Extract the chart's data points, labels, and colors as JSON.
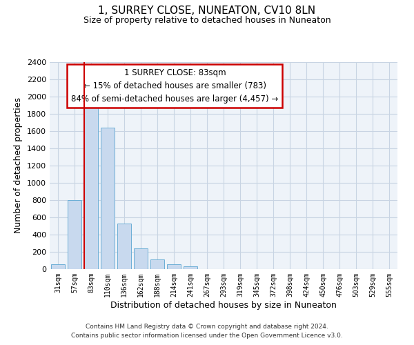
{
  "title": "1, SURREY CLOSE, NUNEATON, CV10 8LN",
  "subtitle": "Size of property relative to detached houses in Nuneaton",
  "xlabel": "Distribution of detached houses by size in Nuneaton",
  "ylabel": "Number of detached properties",
  "bin_labels": [
    "31sqm",
    "57sqm",
    "83sqm",
    "110sqm",
    "136sqm",
    "162sqm",
    "188sqm",
    "214sqm",
    "241sqm",
    "267sqm",
    "293sqm",
    "319sqm",
    "345sqm",
    "372sqm",
    "398sqm",
    "424sqm",
    "450sqm",
    "476sqm",
    "503sqm",
    "529sqm",
    "555sqm"
  ],
  "bar_values": [
    55,
    800,
    1870,
    1640,
    530,
    240,
    110,
    55,
    30,
    0,
    0,
    0,
    0,
    0,
    0,
    0,
    0,
    0,
    0,
    0,
    0
  ],
  "bar_color": "#c8d9ee",
  "bar_edge_color": "#6baed6",
  "property_line_bin": 2,
  "property_line_color": "#cc0000",
  "ylim": [
    0,
    2400
  ],
  "yticks": [
    0,
    200,
    400,
    600,
    800,
    1000,
    1200,
    1400,
    1600,
    1800,
    2000,
    2200,
    2400
  ],
  "annotation_title": "1 SURREY CLOSE: 83sqm",
  "annotation_line1": "← 15% of detached houses are smaller (783)",
  "annotation_line2": "84% of semi-detached houses are larger (4,457) →",
  "annotation_box_color": "#ffffff",
  "annotation_box_edge": "#cc0000",
  "footer1": "Contains HM Land Registry data © Crown copyright and database right 2024.",
  "footer2": "Contains public sector information licensed under the Open Government Licence v3.0.",
  "background_color": "#ffffff",
  "plot_bg_color": "#eef3f9",
  "grid_color": "#c8d4e3"
}
